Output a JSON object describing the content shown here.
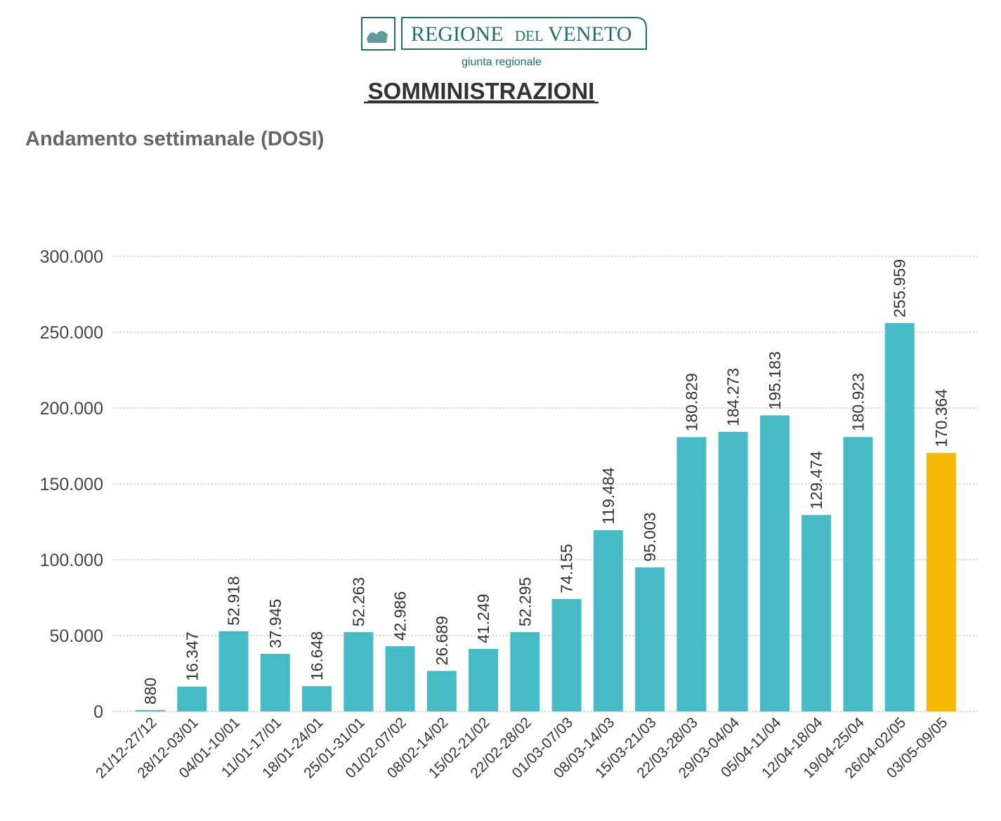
{
  "header": {
    "logo_text_main": "REGIONE",
    "logo_text_del": "DEL",
    "logo_text_region": "VENETO",
    "logo_subtitle": "giunta regionale",
    "title": "SOMMINISTRAZIONI"
  },
  "colors": {
    "bar": "#47bbc5",
    "highlight": "#f7b900",
    "brand": "#1d6f78"
  },
  "chart_data": {
    "type": "bar",
    "title": "Andamento settimanale (DOSI)",
    "xlabel": "",
    "ylabel": "",
    "ylim": [
      0,
      300000
    ],
    "yticks": [
      0,
      50000,
      100000,
      150000,
      200000,
      250000,
      300000
    ],
    "ytick_labels": [
      "0",
      "50.000",
      "100.000",
      "150.000",
      "200.000",
      "250.000",
      "300.000"
    ],
    "grid": true,
    "categories": [
      "21/12-27/12",
      "28/12-03/01",
      "04/01-10/01",
      "11/01-17/01",
      "18/01-24/01",
      "25/01-31/01",
      "01/02-07/02",
      "08/02-14/02",
      "15/02-21/02",
      "22/02-28/02",
      "01/03-07/03",
      "08/03-14/03",
      "15/03-21/03",
      "22/03-28/03",
      "29/03-04/04",
      "05/04-11/04",
      "12/04-18/04",
      "19/04-25/04",
      "26/04-02/05",
      "03/05-09/05"
    ],
    "values": [
      880,
      16347,
      52918,
      37945,
      16648,
      52263,
      42986,
      26689,
      41249,
      52295,
      74155,
      119484,
      95003,
      180829,
      184273,
      195183,
      129474,
      180923,
      255959,
      170364
    ],
    "value_labels": [
      "880",
      "16.347",
      "52.918",
      "37.945",
      "16.648",
      "52.263",
      "42.986",
      "26.689",
      "41.249",
      "52.295",
      "74.155",
      "119.484",
      "95.003",
      "180.829",
      "184.273",
      "195.183",
      "129.474",
      "180.923",
      "255.959",
      "170.364"
    ],
    "highlighted_index": 19
  }
}
